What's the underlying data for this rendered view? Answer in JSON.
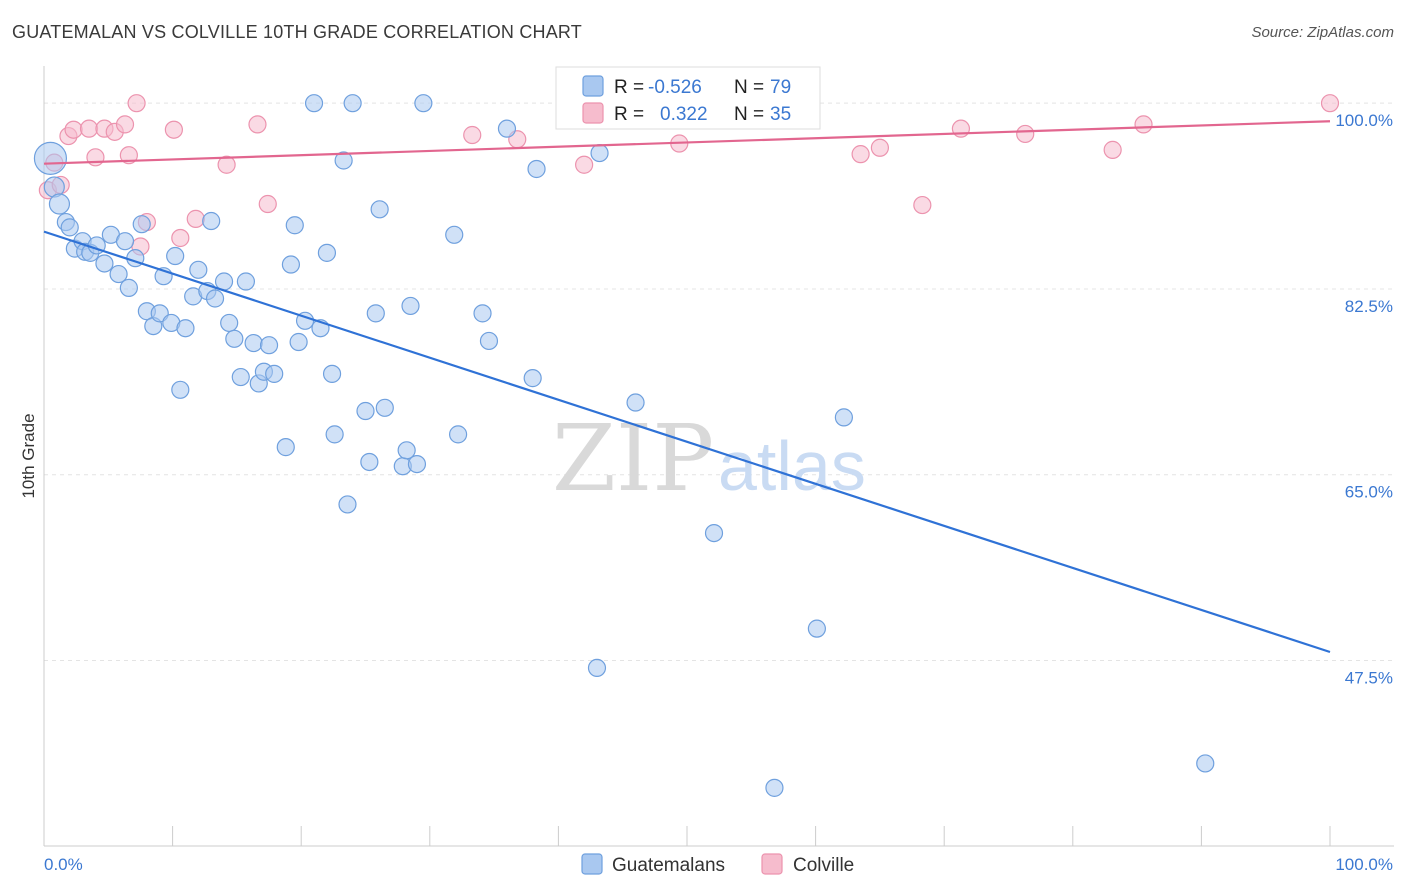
{
  "header": {
    "title": "GUATEMALAN VS COLVILLE 10TH GRADE CORRELATION CHART",
    "source": "Source: ZipAtlas.com"
  },
  "watermark": {
    "part1": "ZIP",
    "part2": "atlas"
  },
  "colors": {
    "blue_fill": "#a9c8f0",
    "blue_stroke": "#6fa0de",
    "blue_line": "#2f72d6",
    "pink_fill": "#f6bccd",
    "pink_stroke": "#ec93ae",
    "pink_line": "#e2668f",
    "value_text": "#3b78d1",
    "grid": "#e4e4e4"
  },
  "stats": {
    "r_label": "R =",
    "n_label": "N =",
    "rows": [
      {
        "r": "-0.526",
        "n": "79"
      },
      {
        "r": "0.322",
        "n": "35"
      }
    ]
  },
  "chart_data": {
    "type": "scatter",
    "title": "GUATEMALAN VS COLVILLE 10TH GRADE CORRELATION CHART",
    "xlabel": "",
    "ylabel": "10th Grade",
    "xlim": [
      0,
      100
    ],
    "ylim": [
      30.4,
      102.4
    ],
    "x_tick_labels": [
      "0.0%",
      "100.0%"
    ],
    "y_ticks": [
      47.5,
      65.0,
      82.5,
      100.0
    ],
    "y_tick_labels": [
      "47.5%",
      "65.0%",
      "82.5%",
      "100.0%"
    ],
    "grid": true,
    "legend_position": "bottom",
    "series": [
      {
        "name": "Guatemalans",
        "trend": {
          "x": [
            0,
            100
          ],
          "y": [
            87.9,
            48.3
          ]
        },
        "points": [
          [
            0.5,
            94.8
          ],
          [
            0.8,
            92.1
          ],
          [
            1.2,
            90.5
          ],
          [
            1.7,
            88.8
          ],
          [
            2.0,
            88.3
          ],
          [
            2.4,
            86.3
          ],
          [
            3.0,
            87.0
          ],
          [
            3.2,
            86.0
          ],
          [
            3.6,
            85.9
          ],
          [
            4.1,
            86.6
          ],
          [
            4.7,
            84.9
          ],
          [
            5.2,
            87.6
          ],
          [
            5.8,
            83.9
          ],
          [
            6.3,
            87.0
          ],
          [
            6.6,
            82.6
          ],
          [
            7.1,
            85.4
          ],
          [
            7.6,
            88.6
          ],
          [
            8.0,
            80.4
          ],
          [
            8.5,
            79.0
          ],
          [
            9.0,
            80.2
          ],
          [
            9.3,
            83.7
          ],
          [
            9.9,
            79.3
          ],
          [
            10.2,
            85.6
          ],
          [
            10.6,
            73.0
          ],
          [
            11.0,
            78.8
          ],
          [
            11.6,
            81.8
          ],
          [
            12.0,
            84.3
          ],
          [
            12.7,
            82.3
          ],
          [
            13.0,
            88.9
          ],
          [
            13.3,
            81.6
          ],
          [
            14.0,
            83.2
          ],
          [
            14.4,
            79.3
          ],
          [
            14.8,
            77.8
          ],
          [
            15.3,
            74.2
          ],
          [
            15.7,
            83.2
          ],
          [
            16.3,
            77.4
          ],
          [
            16.7,
            73.6
          ],
          [
            17.1,
            74.7
          ],
          [
            17.5,
            77.2
          ],
          [
            17.9,
            74.5
          ],
          [
            18.8,
            67.6
          ],
          [
            19.2,
            84.8
          ],
          [
            19.5,
            88.5
          ],
          [
            19.8,
            77.5
          ],
          [
            20.3,
            79.5
          ],
          [
            21.0,
            100.0
          ],
          [
            21.5,
            78.8
          ],
          [
            22.0,
            85.9
          ],
          [
            22.4,
            74.5
          ],
          [
            22.6,
            68.8
          ],
          [
            23.3,
            94.6
          ],
          [
            23.6,
            62.2
          ],
          [
            24.0,
            100.0
          ],
          [
            25.0,
            71.0
          ],
          [
            25.3,
            66.2
          ],
          [
            25.8,
            80.2
          ],
          [
            26.1,
            90.0
          ],
          [
            26.5,
            71.3
          ],
          [
            27.9,
            65.8
          ],
          [
            28.2,
            67.3
          ],
          [
            28.5,
            80.9
          ],
          [
            29.0,
            66.0
          ],
          [
            29.5,
            100.0
          ],
          [
            31.9,
            87.6
          ],
          [
            32.2,
            68.8
          ],
          [
            34.1,
            80.2
          ],
          [
            34.6,
            77.6
          ],
          [
            36.0,
            97.6
          ],
          [
            38.0,
            74.1
          ],
          [
            38.3,
            93.8
          ],
          [
            43.0,
            46.8
          ],
          [
            43.2,
            95.3
          ],
          [
            46.0,
            71.8
          ],
          [
            52.1,
            59.5
          ],
          [
            56.8,
            35.5
          ],
          [
            58.6,
            100.0
          ],
          [
            60.1,
            50.5
          ],
          [
            62.2,
            70.4
          ],
          [
            90.3,
            37.8
          ]
        ]
      },
      {
        "name": "Colville",
        "trend": {
          "x": [
            0,
            100
          ],
          "y": [
            94.3,
            98.3
          ]
        },
        "points": [
          [
            0.3,
            91.8
          ],
          [
            0.8,
            94.4
          ],
          [
            1.3,
            92.3
          ],
          [
            1.9,
            96.9
          ],
          [
            2.3,
            97.5
          ],
          [
            3.5,
            97.6
          ],
          [
            4.0,
            94.9
          ],
          [
            4.7,
            97.6
          ],
          [
            5.5,
            97.3
          ],
          [
            6.3,
            98.0
          ],
          [
            6.6,
            95.1
          ],
          [
            7.2,
            100.0
          ],
          [
            7.5,
            86.5
          ],
          [
            8.0,
            88.8
          ],
          [
            10.1,
            97.5
          ],
          [
            10.6,
            87.3
          ],
          [
            11.8,
            89.1
          ],
          [
            14.2,
            94.2
          ],
          [
            16.6,
            98.0
          ],
          [
            17.4,
            90.5
          ],
          [
            33.3,
            97.0
          ],
          [
            36.8,
            96.6
          ],
          [
            40.6,
            100.0
          ],
          [
            42.0,
            94.2
          ],
          [
            45.8,
            100.0
          ],
          [
            49.4,
            96.2
          ],
          [
            58.0,
            100.0
          ],
          [
            63.5,
            95.2
          ],
          [
            65.0,
            95.8
          ],
          [
            68.3,
            90.4
          ],
          [
            71.3,
            97.6
          ],
          [
            76.3,
            97.1
          ],
          [
            83.1,
            95.6
          ],
          [
            85.5,
            98.0
          ],
          [
            100.0,
            100.0
          ]
        ]
      }
    ]
  }
}
